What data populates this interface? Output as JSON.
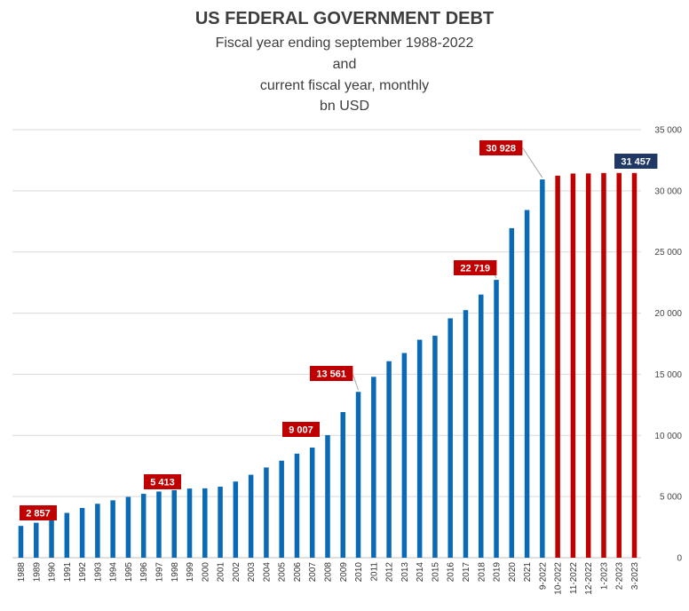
{
  "chart_data": {
    "type": "bar",
    "title": "US FEDERAL GOVERNMENT DEBT",
    "subtitle_lines": [
      "Fiscal year ending september 1988-2022",
      "and",
      "current fiscal year, monthly",
      "bn USD"
    ],
    "xlabel": "",
    "ylabel": "",
    "ylim": [
      0,
      35000
    ],
    "yticks": [
      0,
      5000,
      10000,
      15000,
      20000,
      25000,
      30000,
      35000
    ],
    "ytick_labels": [
      "0",
      "5 000",
      "10 000",
      "15 000",
      "20 000",
      "25 000",
      "30 000",
      "35 000"
    ],
    "grid": true,
    "y_axis_position": "right",
    "categories": [
      "1988",
      "1989",
      "1990",
      "1991",
      "1992",
      "1993",
      "1994",
      "1995",
      "1996",
      "1997",
      "1998",
      "1999",
      "2000",
      "2001",
      "2002",
      "2003",
      "2004",
      "2005",
      "2006",
      "2007",
      "2008",
      "2009",
      "2010",
      "2011",
      "2012",
      "2013",
      "2014",
      "2015",
      "2016",
      "2017",
      "2018",
      "2019",
      "2020",
      "2021",
      "9-2022",
      "10-2022",
      "11-2022",
      "12-2022",
      "1-2023",
      "2-2023",
      "3-2023"
    ],
    "series": [
      {
        "color": "#0b6ab5",
        "values": [
          2602,
          2857,
          3233,
          3665,
          4065,
          4411,
          4693,
          4974,
          5225,
          5413,
          5526,
          5656,
          5674,
          5807,
          6228,
          6783,
          7379,
          7933,
          8507,
          9007,
          10025,
          11910,
          13561,
          14790,
          16066,
          16738,
          17824,
          18151,
          19573,
          20245,
          21516,
          22719,
          26945,
          28429,
          30928,
          null,
          null,
          null,
          null,
          null,
          null
        ]
      },
      {
        "color": "#c00000",
        "values": [
          null,
          null,
          null,
          null,
          null,
          null,
          null,
          null,
          null,
          null,
          null,
          null,
          null,
          null,
          null,
          null,
          null,
          null,
          null,
          null,
          null,
          null,
          null,
          null,
          null,
          null,
          null,
          null,
          null,
          null,
          null,
          null,
          null,
          null,
          null,
          31238,
          31413,
          31420,
          31455,
          31457,
          31457
        ]
      }
    ],
    "annotations": [
      {
        "index": 1,
        "text": "2 857",
        "color": "#c00000"
      },
      {
        "index": 9,
        "text": "5 413",
        "color": "#c00000"
      },
      {
        "index": 19,
        "text": "9 007",
        "color": "#c00000"
      },
      {
        "index": 22,
        "text": "13 561",
        "color": "#c00000"
      },
      {
        "index": 31,
        "text": "22 719",
        "color": "#c00000"
      },
      {
        "index": 34,
        "text": "30 928",
        "color": "#c00000"
      },
      {
        "index": 40,
        "text": "31 457",
        "color": "#1f3864"
      }
    ]
  }
}
